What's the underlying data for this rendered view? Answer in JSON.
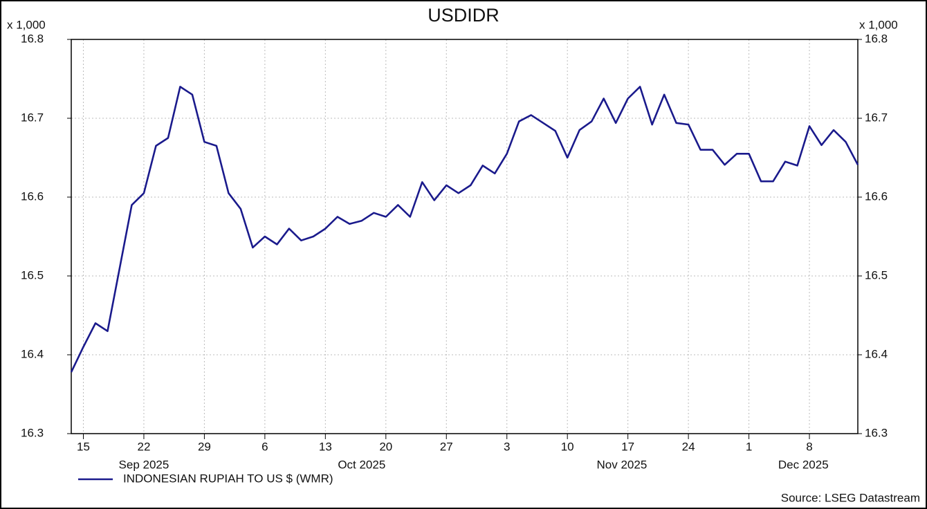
{
  "chart_data": {
    "type": "line",
    "title": "USDIDR",
    "y_unit_label": "x 1,000",
    "source": "Source: LSEG Datastream",
    "x": [
      "2025-09-12",
      "2025-09-15",
      "2025-09-16",
      "2025-09-17",
      "2025-09-18",
      "2025-09-19",
      "2025-09-22",
      "2025-09-23",
      "2025-09-24",
      "2025-09-25",
      "2025-09-26",
      "2025-09-29",
      "2025-09-30",
      "2025-10-01",
      "2025-10-02",
      "2025-10-03",
      "2025-10-06",
      "2025-10-07",
      "2025-10-08",
      "2025-10-09",
      "2025-10-10",
      "2025-10-13",
      "2025-10-14",
      "2025-10-15",
      "2025-10-16",
      "2025-10-17",
      "2025-10-20",
      "2025-10-21",
      "2025-10-22",
      "2025-10-23",
      "2025-10-24",
      "2025-10-27",
      "2025-10-28",
      "2025-10-29",
      "2025-10-30",
      "2025-10-31",
      "2025-11-03",
      "2025-11-04",
      "2025-11-05",
      "2025-11-06",
      "2025-11-07",
      "2025-11-10",
      "2025-11-11",
      "2025-11-12",
      "2025-11-13",
      "2025-11-14",
      "2025-11-17",
      "2025-11-18",
      "2025-11-19",
      "2025-11-20",
      "2025-11-21",
      "2025-11-24",
      "2025-11-25",
      "2025-11-26",
      "2025-11-27",
      "2025-11-28",
      "2025-12-01",
      "2025-12-02",
      "2025-12-03",
      "2025-12-04",
      "2025-12-05",
      "2025-12-08",
      "2025-12-09",
      "2025-12-10",
      "2025-12-11",
      "2025-12-12"
    ],
    "series": [
      {
        "name": "INDONESIAN RUPIAH TO US $ (WMR)",
        "color": "#1a1a8c",
        "values": [
          16.378,
          16.41,
          16.44,
          16.43,
          16.51,
          16.59,
          16.605,
          16.665,
          16.675,
          16.74,
          16.73,
          16.67,
          16.665,
          16.605,
          16.585,
          16.536,
          16.55,
          16.54,
          16.56,
          16.545,
          16.55,
          16.56,
          16.575,
          16.566,
          16.57,
          16.58,
          16.575,
          16.59,
          16.575,
          16.619,
          16.596,
          16.615,
          16.605,
          16.615,
          16.64,
          16.63,
          16.655,
          16.696,
          16.704,
          16.694,
          16.684,
          16.65,
          16.685,
          16.696,
          16.725,
          16.694,
          16.725,
          16.74,
          16.692,
          16.73,
          16.694,
          16.692,
          16.66,
          16.66,
          16.641,
          16.655,
          16.655,
          16.62,
          16.62,
          16.645,
          16.64,
          16.69,
          16.666,
          16.685,
          16.67,
          16.641
        ]
      }
    ],
    "ylim": [
      16.3,
      16.8
    ],
    "yticks": [
      16.3,
      16.4,
      16.5,
      16.6,
      16.7,
      16.8
    ],
    "xticks": [
      {
        "value": "2025-09-15",
        "label": "15"
      },
      {
        "value": "2025-09-22",
        "label": "22"
      },
      {
        "value": "2025-09-29",
        "label": "29"
      },
      {
        "value": "2025-10-06",
        "label": "6"
      },
      {
        "value": "2025-10-13",
        "label": "13"
      },
      {
        "value": "2025-10-20",
        "label": "20"
      },
      {
        "value": "2025-10-27",
        "label": "27"
      },
      {
        "value": "2025-11-03",
        "label": "3"
      },
      {
        "value": "2025-11-10",
        "label": "10"
      },
      {
        "value": "2025-11-17",
        "label": "17"
      },
      {
        "value": "2025-11-24",
        "label": "24"
      },
      {
        "value": "2025-12-01",
        "label": "1"
      },
      {
        "value": "2025-12-08",
        "label": "8"
      }
    ],
    "month_labels": [
      {
        "value": "2025-09",
        "label": "Sep 2025"
      },
      {
        "value": "2025-10",
        "label": "Oct 2025"
      },
      {
        "value": "2025-11",
        "label": "Nov 2025"
      },
      {
        "value": "2025-12",
        "label": "Dec 2025"
      }
    ],
    "grid": true
  }
}
